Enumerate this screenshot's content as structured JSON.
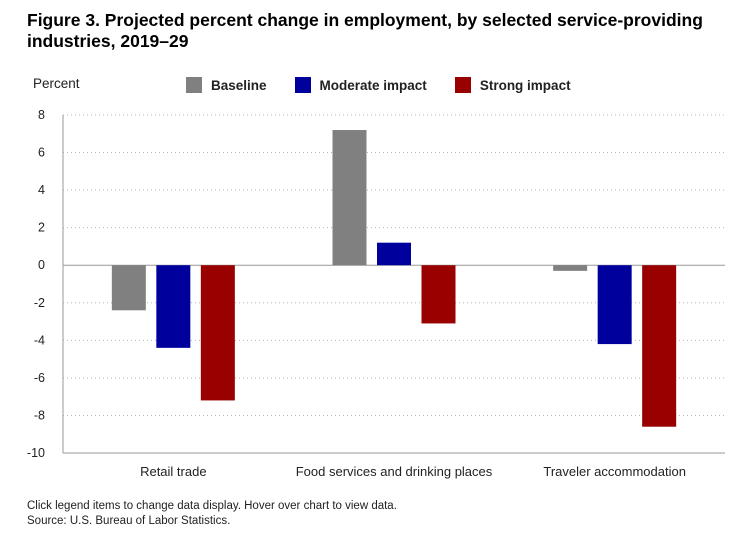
{
  "title": "Figure 3. Projected percent change in employment, by selected service-providing industries, 2019–29",
  "y_unit_label": "Percent",
  "footnotes": {
    "instructions": "Click legend items to change data display. Hover over chart to view data.",
    "source": "Source: U.S. Bureau of Labor Statistics."
  },
  "chart_data": {
    "type": "bar",
    "categories": [
      "Retail trade",
      "Food services and drinking places",
      "Traveler accommodation"
    ],
    "series": [
      {
        "name": "Baseline",
        "color": "#808080",
        "values": [
          -2.4,
          7.2,
          -0.3
        ]
      },
      {
        "name": "Moderate impact",
        "color": "#00009C",
        "values": [
          -4.4,
          1.2,
          -4.2
        ]
      },
      {
        "name": "Strong impact",
        "color": "#990000",
        "values": [
          -7.2,
          -3.1,
          -8.6
        ]
      }
    ],
    "yticks": [
      "8",
      "6",
      "4",
      "2",
      "0",
      "-2",
      "-4",
      "-6",
      "-8",
      "-10"
    ],
    "ylim": [
      -10,
      8
    ],
    "grid": true,
    "legend_position": "top"
  }
}
